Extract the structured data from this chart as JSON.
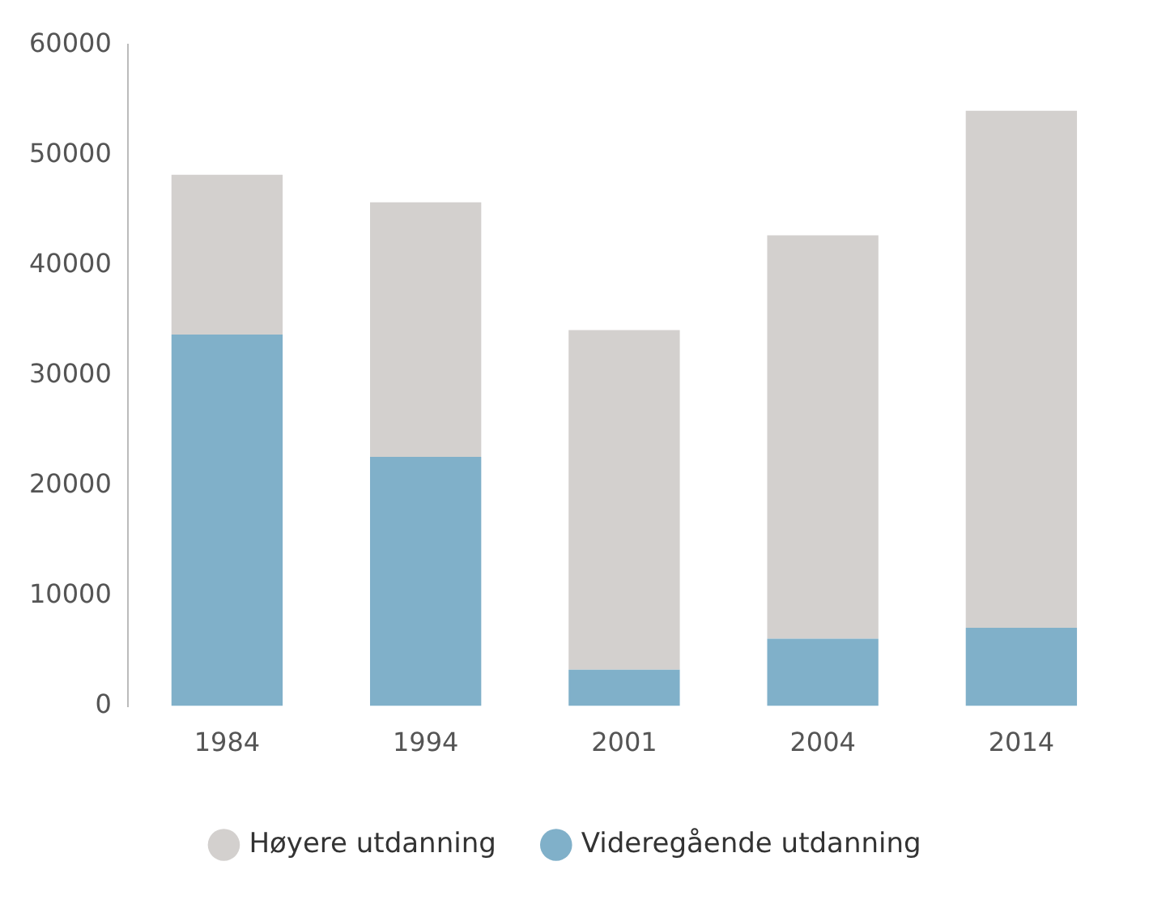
{
  "chart_data": {
    "type": "bar",
    "stacked": true,
    "categories": [
      "1984",
      "1994",
      "2001",
      "2004",
      "2014"
    ],
    "series": [
      {
        "name": "Videregående utdanning",
        "color": "#80b0c9",
        "values": [
          33700,
          22600,
          3300,
          6100,
          7100
        ]
      },
      {
        "name": "Høyere utdanning",
        "color": "#d3d0ce",
        "values": [
          14500,
          23100,
          30800,
          36600,
          46900
        ]
      }
    ],
    "ylim": [
      0,
      60000
    ],
    "yticks": [
      0,
      10000,
      20000,
      30000,
      40000,
      50000,
      60000
    ],
    "grid": false,
    "legend": "bottom"
  }
}
